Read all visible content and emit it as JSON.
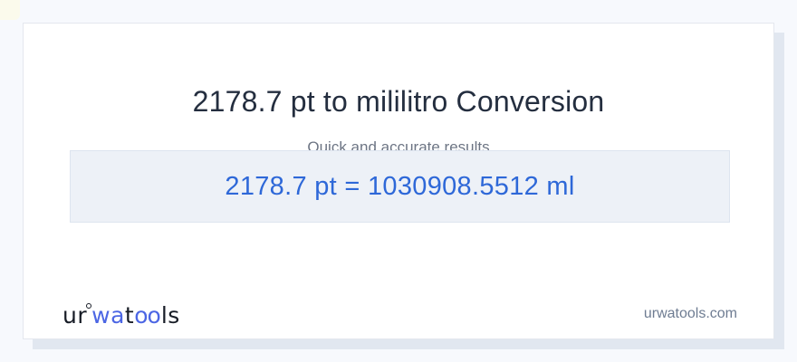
{
  "page": {
    "background_color": "#f7f9fd",
    "card_background": "#ffffff",
    "shadow_color": "#e1e7f0",
    "corner_accent_color": "#fbfae9"
  },
  "header": {
    "title": "2178.7 pt to mililitro Conversion",
    "subtitle": "Quick and accurate results",
    "title_color": "#242e3f",
    "subtitle_color": "#6d7584"
  },
  "result": {
    "text": "2178.7 pt = 1030908.5512 ml",
    "value_from": "2178.7",
    "unit_from": "pt",
    "value_to": "1030908.5512",
    "unit_to": "ml",
    "text_color": "#2e68d8",
    "box_background": "#edf1f7"
  },
  "footer": {
    "logo": {
      "segment_ur": "ur",
      "ring_icon": "ring",
      "segment_wa": "wa",
      "segment_t": "t",
      "segment_oo": "oo",
      "segment_ls": "ls",
      "dark_color": "#171c26",
      "accent_color": "#4c66e4"
    },
    "website": "urwatools.com"
  }
}
